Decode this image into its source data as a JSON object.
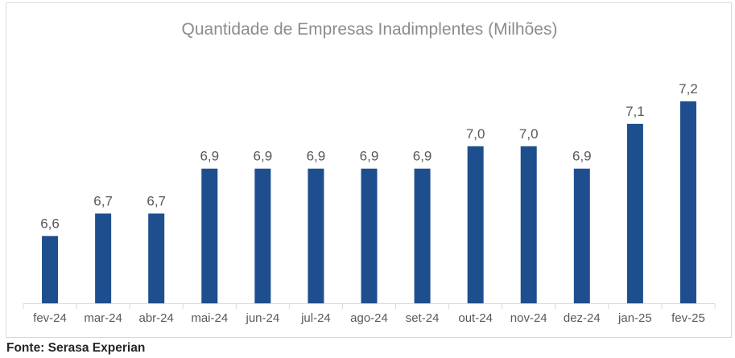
{
  "chart_data": {
    "type": "bar",
    "title": "Quantidade de Empresas Inadimplentes (Milhões)",
    "categories": [
      "fev-24",
      "mar-24",
      "abr-24",
      "mai-24",
      "jun-24",
      "jul-24",
      "ago-24",
      "set-24",
      "out-24",
      "nov-24",
      "dez-24",
      "jan-25",
      "fev-25"
    ],
    "values": [
      6.6,
      6.7,
      6.7,
      6.9,
      6.9,
      6.9,
      6.9,
      6.9,
      7.0,
      7.0,
      6.9,
      7.1,
      7.2
    ],
    "data_labels": [
      "6,6",
      "6,7",
      "6,7",
      "6,9",
      "6,9",
      "6,9",
      "6,9",
      "6,9",
      "7,0",
      "7,0",
      "6,9",
      "7,1",
      "7,2"
    ],
    "xlabel": "",
    "ylabel": "",
    "ylim": [
      6.3,
      7.2
    ],
    "grid": false,
    "legend": "none",
    "colors": {
      "bar": "#1f4e8f",
      "axis": "#d9d9d9",
      "title": "#8c8c8c",
      "label": "#595959"
    }
  },
  "source": "Fonte: Serasa Experian"
}
